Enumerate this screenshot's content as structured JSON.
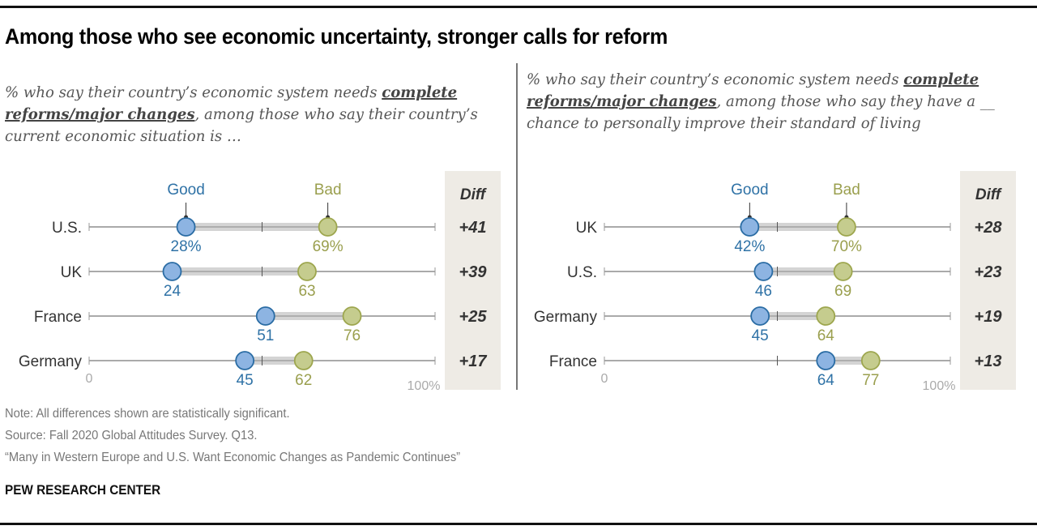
{
  "title": "Among those who see economic uncertainty, stronger calls for reform",
  "left_panel": {
    "subtitle_pre": "% who say their country’s economic system needs ",
    "subtitle_em": "complete reforms/major changes",
    "subtitle_post": ", among those who say their country’s current economic situation is …"
  },
  "right_panel": {
    "subtitle_pre": "% who say their country’s economic system needs ",
    "subtitle_em": "complete reforms/major changes",
    "subtitle_post": ", among those who say they have a __ chance to personally improve their standard of living"
  },
  "footer": {
    "note": "Note: All differences shown are statistically significant.",
    "source": "Source: Fall 2020 Global Attitudes Survey. Q13.",
    "report": "“Many in Western Europe and U.S. Want Economic Changes as Pandemic Continues”",
    "brand": "PEW RESEARCH CENTER"
  },
  "colors": {
    "good_fill": "#8db4e2",
    "good_stroke": "#2a6ca4",
    "good_text": "#2f72a6",
    "bad_fill": "#c5cc8e",
    "bad_stroke": "#9da64e",
    "bad_text": "#9a9f4e",
    "range_bar": "#d4d4d4",
    "diff_bg": "#eeebe5"
  },
  "chart_data": [
    {
      "type": "dot-range",
      "panel": "left",
      "series": [
        {
          "name": "Good"
        },
        {
          "name": "Bad"
        }
      ],
      "diff_header": "Diff",
      "axis": {
        "min": 0,
        "max": 100,
        "min_label": "0",
        "max_label": "100%",
        "midpoint_tick": 50
      },
      "rows": [
        {
          "category": "U.S.",
          "good": 28,
          "bad": 69,
          "good_label": "28%",
          "bad_label": "69%",
          "diff": "+41"
        },
        {
          "category": "UK",
          "good": 24,
          "bad": 63,
          "good_label": "24",
          "bad_label": "63",
          "diff": "+39"
        },
        {
          "category": "France",
          "good": 51,
          "bad": 76,
          "good_label": "51",
          "bad_label": "76",
          "diff": "+25"
        },
        {
          "category": "Germany",
          "good": 45,
          "bad": 62,
          "good_label": "45",
          "bad_label": "62",
          "diff": "+17"
        }
      ]
    },
    {
      "type": "dot-range",
      "panel": "right",
      "series": [
        {
          "name": "Good"
        },
        {
          "name": "Bad"
        }
      ],
      "diff_header": "Diff",
      "axis": {
        "min": 0,
        "max": 100,
        "min_label": "0",
        "max_label": "100%",
        "midpoint_tick": 50
      },
      "rows": [
        {
          "category": "UK",
          "good": 42,
          "bad": 70,
          "good_label": "42%",
          "bad_label": "70%",
          "diff": "+28"
        },
        {
          "category": "U.S.",
          "good": 46,
          "bad": 69,
          "good_label": "46",
          "bad_label": "69",
          "diff": "+23"
        },
        {
          "category": "Germany",
          "good": 45,
          "bad": 64,
          "good_label": "45",
          "bad_label": "64",
          "diff": "+19"
        },
        {
          "category": "France",
          "good": 64,
          "bad": 77,
          "good_label": "64",
          "bad_label": "77",
          "diff": "+13"
        }
      ]
    }
  ]
}
